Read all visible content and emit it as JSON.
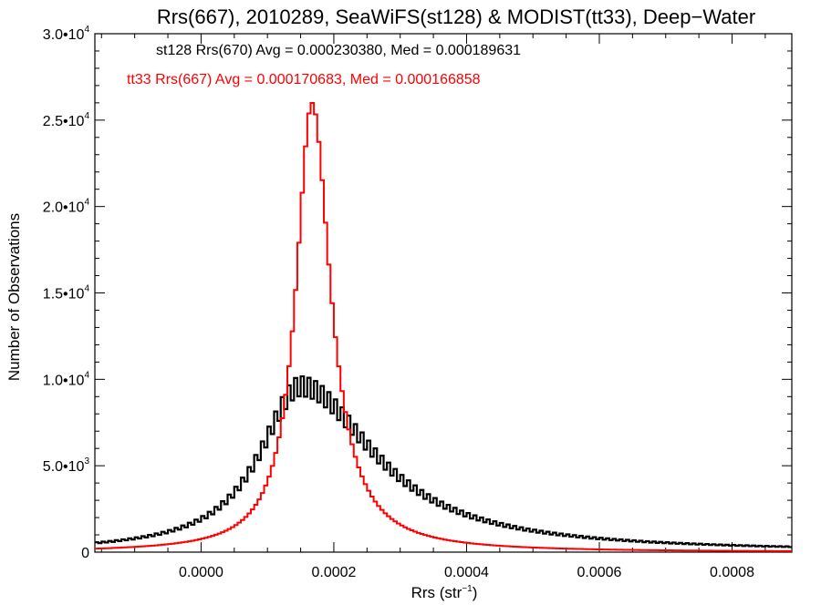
{
  "chart_data": {
    "type": "histogram",
    "title": "Rrs(667), 2010289, SeaWiFS(st128) & MODIST(tt33), Deep−Water",
    "xlabel": "Rrs (str",
    "xlabel_sup": "−1",
    "xlabel_tail": ")",
    "ylabel": "Number of Observations",
    "xlim": [
      -0.00016,
      0.00089
    ],
    "ylim": [
      0,
      30000
    ],
    "xticks": [
      {
        "value": 0.0,
        "label": "0.0000"
      },
      {
        "value": 0.0002,
        "label": "0.0002"
      },
      {
        "value": 0.0004,
        "label": "0.0004"
      },
      {
        "value": 0.0006,
        "label": "0.0006"
      },
      {
        "value": 0.0008,
        "label": "0.0008"
      }
    ],
    "yticks": [
      {
        "value": 0,
        "label": "0",
        "sup": ""
      },
      {
        "value": 5000,
        "label": "5.0•10",
        "sup": "3"
      },
      {
        "value": 10000,
        "label": "1.0•10",
        "sup": "4"
      },
      {
        "value": 15000,
        "label": "1.5•10",
        "sup": "4"
      },
      {
        "value": 20000,
        "label": "2.0•10",
        "sup": "4"
      },
      {
        "value": 25000,
        "label": "2.5•10",
        "sup": "4"
      },
      {
        "value": 30000,
        "label": "3.0•10",
        "sup": "4"
      }
    ],
    "annotations": [
      {
        "text": "st128 Rrs(670) Avg = 0.000230380, Med = 0.000189631",
        "color": "#000000"
      },
      {
        "text": "tt33 Rrs(667) Avg = 0.000170683, Med = 0.000166858",
        "color": "#ff0000"
      }
    ],
    "series": [
      {
        "color": "#000000",
        "avg": 0.00023038,
        "median": 0.000189631,
        "profile": {
          "peak_x": 0.00015,
          "peak_y": 9600,
          "left_width": 7.5e-05,
          "right_width": 0.000135,
          "shape": "lorentzian",
          "jagged": true
        },
        "bin_width": 5e-06
      },
      {
        "color": "#ff0000",
        "avg": 0.000170683,
        "median": 0.000166858,
        "profile": {
          "peak_x": 0.000167,
          "peak_y": 26000,
          "left_width": 2.9e-05,
          "right_width": 3.4e-05,
          "shape": "lorentzian",
          "jagged": false
        },
        "bin_width": 5e-06
      }
    ]
  }
}
